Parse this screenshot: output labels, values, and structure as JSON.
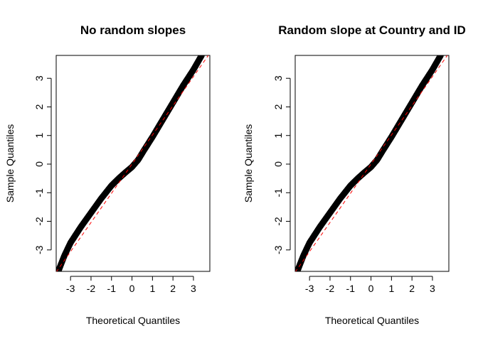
{
  "chart_data": [
    {
      "type": "scatter",
      "title": "No random slopes",
      "xlabel": "Theoretical Quantiles",
      "ylabel": "Sample Quantiles",
      "xlim": [
        -3.7,
        3.8
      ],
      "ylim": [
        -3.75,
        3.8
      ],
      "xticks": [
        -3,
        -2,
        -1,
        0,
        1,
        2,
        3
      ],
      "yticks": [
        -3,
        -2,
        -1,
        0,
        1,
        2,
        3
      ],
      "grid": false,
      "reference_line": {
        "style": "dashed",
        "color": "#ff0000",
        "slope": 1.02,
        "intercept": 0.0
      },
      "qq_curve": {
        "x": [
          -3.6,
          -3.3,
          -3.0,
          -2.5,
          -2.0,
          -1.5,
          -1.0,
          -0.6,
          -0.3,
          0.0,
          0.3,
          0.6,
          1.0,
          1.5,
          2.0,
          2.5,
          3.0,
          3.4
        ],
        "y": [
          -3.75,
          -3.2,
          -2.75,
          -2.2,
          -1.7,
          -1.2,
          -0.75,
          -0.47,
          -0.28,
          -0.1,
          0.15,
          0.5,
          0.95,
          1.55,
          2.15,
          2.75,
          3.3,
          3.8
        ]
      },
      "marker": {
        "shape": "open-circle",
        "color": "#000000"
      }
    },
    {
      "type": "scatter",
      "title": "Random slope at Country and ID",
      "xlabel": "Theoretical Quantiles",
      "ylabel": "Sample Quantiles",
      "xlim": [
        -3.7,
        3.8
      ],
      "ylim": [
        -3.75,
        3.8
      ],
      "xticks": [
        -3,
        -2,
        -1,
        0,
        1,
        2,
        3
      ],
      "yticks": [
        -3,
        -2,
        -1,
        0,
        1,
        2,
        3
      ],
      "grid": false,
      "reference_line": {
        "style": "dashed",
        "color": "#ff0000",
        "slope": 1.02,
        "intercept": 0.0
      },
      "qq_curve": {
        "x": [
          -3.6,
          -3.3,
          -3.0,
          -2.5,
          -2.0,
          -1.5,
          -1.0,
          -0.6,
          -0.3,
          0.0,
          0.3,
          0.6,
          1.0,
          1.5,
          2.0,
          2.5,
          3.0,
          3.4
        ],
        "y": [
          -3.75,
          -3.2,
          -2.75,
          -2.2,
          -1.7,
          -1.2,
          -0.75,
          -0.47,
          -0.28,
          -0.1,
          0.15,
          0.5,
          0.95,
          1.55,
          2.15,
          2.75,
          3.3,
          3.8
        ]
      },
      "marker": {
        "shape": "open-circle",
        "color": "#000000"
      }
    }
  ]
}
